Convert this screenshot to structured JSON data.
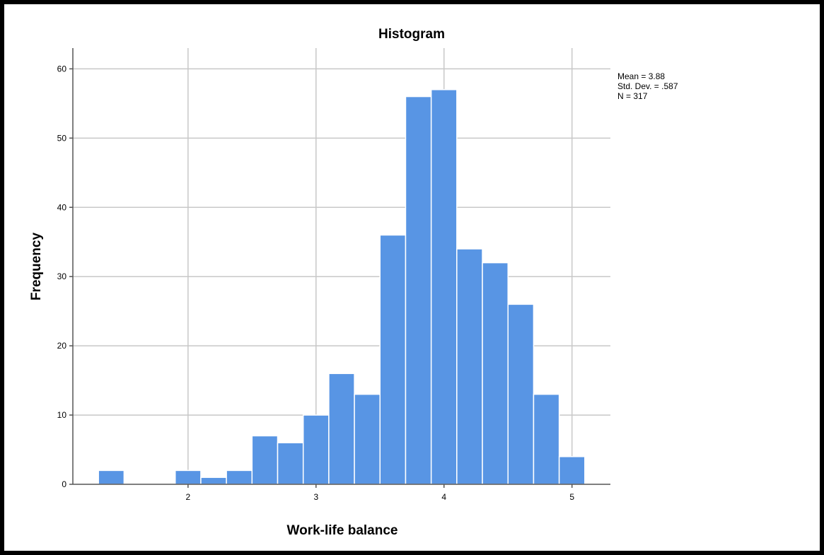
{
  "chart_data": {
    "type": "bar",
    "title": "Histogram",
    "xlabel": "Work-life balance",
    "ylabel": "Frequency",
    "xlim": [
      1.1,
      5.3
    ],
    "ylim": [
      0,
      63
    ],
    "x_ticks": [
      2,
      3,
      4,
      5
    ],
    "y_ticks": [
      0,
      10,
      20,
      30,
      40,
      50,
      60
    ],
    "bin_width": 0.2,
    "bins": [
      {
        "start": 1.3,
        "end": 1.5,
        "count": 2
      },
      {
        "start": 1.5,
        "end": 1.7,
        "count": 0
      },
      {
        "start": 1.7,
        "end": 1.9,
        "count": 0
      },
      {
        "start": 1.9,
        "end": 2.1,
        "count": 2
      },
      {
        "start": 2.1,
        "end": 2.3,
        "count": 1
      },
      {
        "start": 2.3,
        "end": 2.5,
        "count": 2
      },
      {
        "start": 2.5,
        "end": 2.7,
        "count": 7
      },
      {
        "start": 2.7,
        "end": 2.9,
        "count": 6
      },
      {
        "start": 2.9,
        "end": 3.1,
        "count": 10
      },
      {
        "start": 3.1,
        "end": 3.3,
        "count": 16
      },
      {
        "start": 3.3,
        "end": 3.5,
        "count": 13
      },
      {
        "start": 3.5,
        "end": 3.7,
        "count": 36
      },
      {
        "start": 3.7,
        "end": 3.9,
        "count": 56
      },
      {
        "start": 3.9,
        "end": 4.1,
        "count": 57
      },
      {
        "start": 4.1,
        "end": 4.3,
        "count": 34
      },
      {
        "start": 4.3,
        "end": 4.5,
        "count": 32
      },
      {
        "start": 4.5,
        "end": 4.7,
        "count": 26
      },
      {
        "start": 4.7,
        "end": 4.9,
        "count": 13
      },
      {
        "start": 4.9,
        "end": 5.1,
        "count": 4
      }
    ],
    "grid": true,
    "stats": {
      "mean_label": "Mean = 3.88",
      "std_label": "Std. Dev. = .587",
      "n_label": "N = 317"
    },
    "colors": {
      "bar_fill": "#5895e4",
      "bar_edge": "#ffffff",
      "grid": "#c8c8c8",
      "axis": "#555555",
      "frame": "#000000"
    }
  }
}
